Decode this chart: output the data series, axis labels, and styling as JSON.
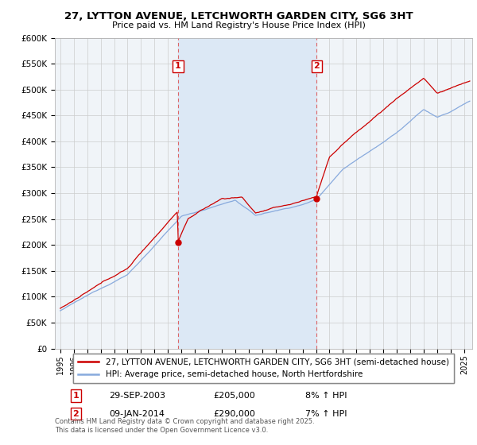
{
  "title": "27, LYTTON AVENUE, LETCHWORTH GARDEN CITY, SG6 3HT",
  "subtitle": "Price paid vs. HM Land Registry's House Price Index (HPI)",
  "ylabel_ticks": [
    "£0",
    "£50K",
    "£100K",
    "£150K",
    "£200K",
    "£250K",
    "£300K",
    "£350K",
    "£400K",
    "£450K",
    "£500K",
    "£550K",
    "£600K"
  ],
  "ylim": [
    0,
    600000
  ],
  "ytick_vals": [
    0,
    50000,
    100000,
    150000,
    200000,
    250000,
    300000,
    350000,
    400000,
    450000,
    500000,
    550000,
    600000
  ],
  "x_start_year": 1995,
  "x_end_year": 2025,
  "sale1_date": "29-SEP-2003",
  "sale1_price": 205000,
  "sale1_hpi_pct": "8%",
  "sale2_date": "09-JAN-2014",
  "sale2_price": 290000,
  "sale2_hpi_pct": "7%",
  "sale1_x": 2003.75,
  "sale2_x": 2014.04,
  "legend_property": "27, LYTTON AVENUE, LETCHWORTH GARDEN CITY, SG6 3HT (semi-detached house)",
  "legend_hpi": "HPI: Average price, semi-detached house, North Hertfordshire",
  "footer": "Contains HM Land Registry data © Crown copyright and database right 2025.\nThis data is licensed under the Open Government Licence v3.0.",
  "line_color_property": "#cc0000",
  "line_color_hpi": "#88aadd",
  "shade_color": "#dce8f5",
  "vline_color": "#dd6666",
  "background_color": "#ffffff",
  "plot_bg_color": "#f0f4f8",
  "grid_color": "#cccccc",
  "box_num1_label": "1",
  "box_num2_label": "2"
}
